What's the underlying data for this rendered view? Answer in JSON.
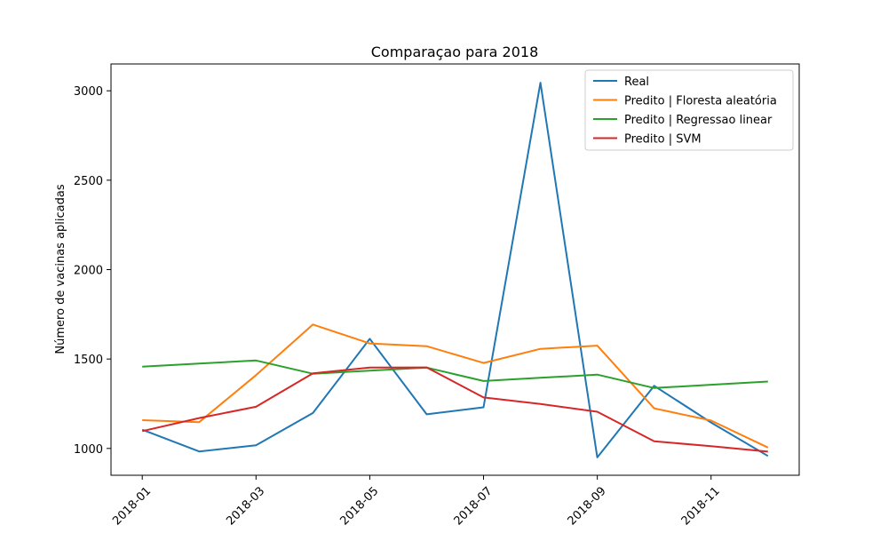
{
  "chart_data": {
    "type": "line",
    "title": "Comparaçao para 2018",
    "xlabel": "",
    "ylabel": "Número de vacinas aplicadas",
    "x": [
      "2018-01",
      "2018-02",
      "2018-03",
      "2018-04",
      "2018-05",
      "2018-06",
      "2018-07",
      "2018-08",
      "2018-09",
      "2018-10",
      "2018-11",
      "2018-12"
    ],
    "x_ticks": [
      "2018-01",
      "2018-03",
      "2018-05",
      "2018-07",
      "2018-09",
      "2018-11"
    ],
    "y_ticks": [
      1000,
      1500,
      2000,
      2500,
      3000
    ],
    "ylim": [
      850,
      3150
    ],
    "grid": false,
    "legend_position": "top-right",
    "series": [
      {
        "name": "Real",
        "color": "#1f77b4",
        "values": [
          1105,
          983,
          1018,
          1198,
          1613,
          1191,
          1230,
          3045,
          950,
          1350,
          1145,
          958
        ]
      },
      {
        "name": "Predito | Floresta aleatória",
        "color": "#ff7f0e",
        "values": [
          1158,
          1147,
          1410,
          1693,
          1587,
          1572,
          1478,
          1557,
          1575,
          1224,
          1156,
          1005
        ]
      },
      {
        "name": "Predito | Regressao linear",
        "color": "#2ca02c",
        "values": [
          1457,
          1475,
          1492,
          1418,
          1435,
          1452,
          1377,
          1395,
          1413,
          1338,
          1356,
          1374
        ]
      },
      {
        "name": "Predito | SVM",
        "color": "#d62728",
        "values": [
          1097,
          1170,
          1233,
          1420,
          1452,
          1453,
          1285,
          1249,
          1205,
          1040,
          1013,
          982
        ]
      }
    ]
  }
}
